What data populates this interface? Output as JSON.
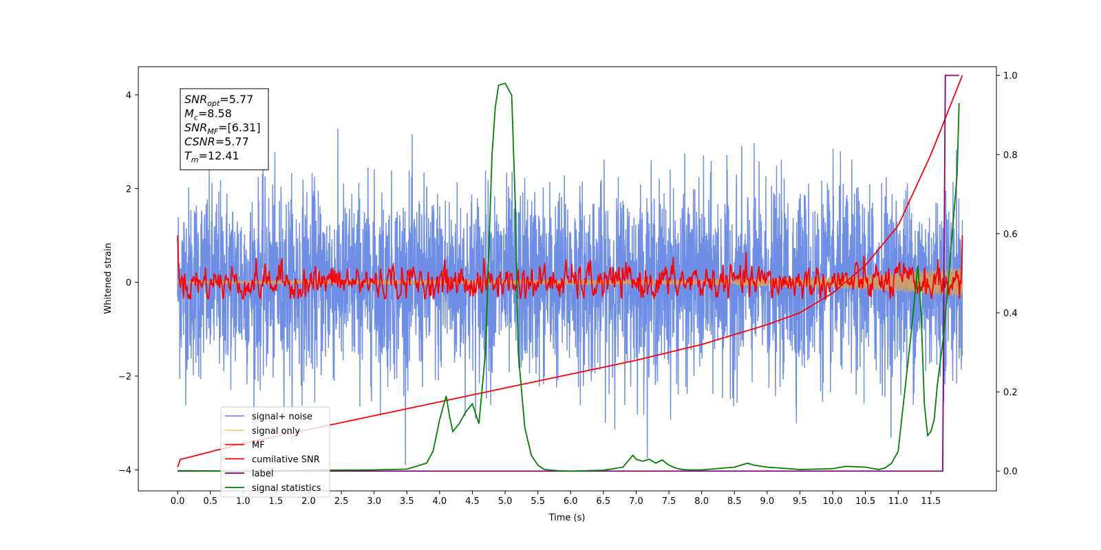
{
  "chart_data": {
    "type": "line",
    "xlabel": "Time (s)",
    "ylabel": "Whitened strain",
    "xlim": [
      -0.6,
      12.5
    ],
    "x_ticks": [
      0.0,
      0.5,
      1.0,
      1.5,
      2.0,
      2.5,
      3.0,
      3.5,
      4.0,
      4.5,
      5.0,
      5.5,
      6.0,
      6.5,
      7.0,
      7.5,
      8.0,
      8.5,
      9.0,
      9.5,
      10.0,
      10.5,
      11.0,
      11.5
    ],
    "x_tick_labels": [
      "0.0",
      "0.5",
      "1.0",
      "1.5",
      "2.0",
      "2.5",
      "3.0",
      "3.5",
      "4.0",
      "4.5",
      "5.0",
      "5.5",
      "6.0",
      "6.5",
      "7.0",
      "7.5",
      "8.0",
      "8.5",
      "9.0",
      "9.5",
      "10.0",
      "10.5",
      "11.0",
      "11.5"
    ],
    "y_left": {
      "lim": [
        -4.45,
        4.6
      ],
      "ticks": [
        -4,
        -2,
        0,
        2,
        4
      ],
      "tick_labels": [
        "−4",
        "−2",
        "0",
        "2",
        "4"
      ]
    },
    "y_right": {
      "lim": [
        -0.05,
        1.022
      ],
      "ticks": [
        0.0,
        0.2,
        0.4,
        0.6,
        0.8,
        1.0
      ],
      "tick_labels": [
        "0.0",
        "0.2",
        "0.4",
        "0.6",
        "0.8",
        "1.0"
      ]
    },
    "grid": false,
    "legend_placement": "lower-left",
    "series": [
      {
        "name": "signal+ noise",
        "color": "#6f8ee6",
        "axis": "left",
        "kind": "noise",
        "x_range": [
          0.0,
          11.98
        ],
        "amplitude": 1.0
      },
      {
        "name": "signal only",
        "color": "#ffcc80",
        "axis": "left",
        "kind": "chirp",
        "x_range": [
          0.0,
          11.98
        ],
        "envelope": [
          [
            0.0,
            0.02
          ],
          [
            8.0,
            0.06
          ],
          [
            10.0,
            0.12
          ],
          [
            11.0,
            0.2
          ],
          [
            11.98,
            0.32
          ]
        ]
      },
      {
        "name": "MF",
        "color": "#ff0000",
        "axis": "left",
        "kind": "mf",
        "x_range": [
          0.0,
          11.98
        ],
        "start": 1.0,
        "end": 1.0
      },
      {
        "name": "cumilative SNR",
        "color": "#ff0000",
        "axis": "right",
        "x": [
          0.0,
          0.01,
          1.0,
          2.0,
          3.0,
          4.0,
          5.0,
          6.0,
          7.0,
          8.0,
          9.0,
          9.5,
          10.0,
          10.5,
          11.0,
          11.5,
          11.98
        ],
        "y": [
          0.01,
          0.028,
          0.07,
          0.105,
          0.14,
          0.175,
          0.21,
          0.245,
          0.28,
          0.32,
          0.37,
          0.4,
          0.45,
          0.52,
          0.62,
          0.8,
          1.0
        ]
      },
      {
        "name": "label",
        "color": "#800080",
        "axis": "right",
        "x": [
          0.0,
          11.68,
          11.72,
          11.93
        ],
        "y": [
          0.0,
          0.0,
          1.0,
          1.0
        ]
      },
      {
        "name": "signal statistics",
        "color": "#008000",
        "axis": "right",
        "x": [
          0.0,
          1.0,
          2.0,
          3.0,
          3.5,
          3.8,
          3.9,
          4.0,
          4.1,
          4.15,
          4.2,
          4.3,
          4.4,
          4.5,
          4.6,
          4.65,
          4.7,
          4.75,
          4.8,
          4.85,
          4.9,
          5.0,
          5.1,
          5.15,
          5.2,
          5.3,
          5.4,
          5.5,
          5.6,
          5.8,
          6.0,
          6.5,
          6.8,
          6.95,
          7.0,
          7.1,
          7.2,
          7.3,
          7.4,
          7.5,
          7.6,
          7.7,
          7.8,
          8.0,
          8.5,
          8.7,
          8.8,
          9.0,
          9.5,
          10.0,
          10.2,
          10.5,
          10.7,
          10.8,
          10.9,
          11.0,
          11.1,
          11.2,
          11.3,
          11.35,
          11.4,
          11.45,
          11.5,
          11.55,
          11.6,
          11.7,
          11.8,
          11.9,
          11.93
        ],
        "y": [
          0.001,
          0.0,
          0.002,
          0.003,
          0.005,
          0.02,
          0.05,
          0.13,
          0.19,
          0.14,
          0.1,
          0.12,
          0.15,
          0.17,
          0.12,
          0.21,
          0.3,
          0.55,
          0.8,
          0.92,
          0.975,
          0.98,
          0.95,
          0.7,
          0.3,
          0.11,
          0.04,
          0.015,
          0.004,
          0.001,
          0.0,
          0.002,
          0.01,
          0.04,
          0.03,
          0.025,
          0.03,
          0.02,
          0.028,
          0.015,
          0.008,
          0.004,
          0.003,
          0.003,
          0.01,
          0.02,
          0.015,
          0.01,
          0.004,
          0.006,
          0.012,
          0.01,
          0.004,
          0.008,
          0.02,
          0.05,
          0.2,
          0.35,
          0.52,
          0.4,
          0.17,
          0.09,
          0.1,
          0.13,
          0.22,
          0.35,
          0.55,
          0.75,
          0.93
        ]
      }
    ],
    "annotation_box": {
      "lines": [
        {
          "sym": "SNR",
          "sub": "opt",
          "val": "=5.77"
        },
        {
          "sym": "M",
          "sub": "c",
          "val": "=8.58"
        },
        {
          "sym": "SNR",
          "sub": "MF",
          "val": "=[6.31]"
        },
        {
          "sym": "CSNR",
          "sub": "",
          "val": "=5.77"
        },
        {
          "sym": "T",
          "sub": "m",
          "val": "=12.41"
        }
      ]
    }
  }
}
